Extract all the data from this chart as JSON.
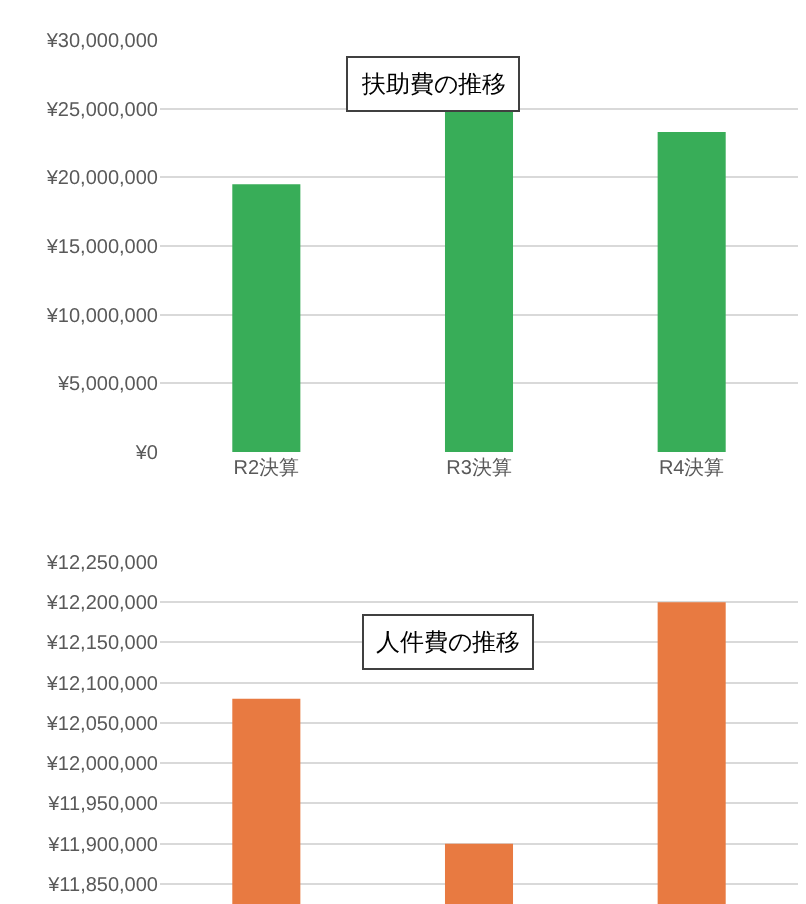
{
  "chart_data": [
    {
      "type": "bar",
      "title": "扶助費の推移",
      "categories": [
        "R2決算",
        "R3決算",
        "R4決算"
      ],
      "series": [
        {
          "color": "#38ad58",
          "values": [
            19500000,
            25100000,
            23300000
          ]
        }
      ],
      "ylim": [
        0,
        30000000
      ],
      "yticks": [
        {
          "value": 0,
          "label": "¥0"
        },
        {
          "value": 5000000,
          "label": "¥5,000,000"
        },
        {
          "value": 10000000,
          "label": "¥10,000,000"
        },
        {
          "value": 15000000,
          "label": "¥15,000,000"
        },
        {
          "value": 20000000,
          "label": "¥20,000,000"
        },
        {
          "value": 25000000,
          "label": "¥25,000,000"
        },
        {
          "value": 30000000,
          "label": "¥30,000,000"
        }
      ],
      "grid": "y"
    },
    {
      "type": "bar",
      "title": "人件費の推移",
      "categories": [
        null,
        null,
        null
      ],
      "series": [
        {
          "color": "#e87a41",
          "values": [
            12080000,
            11900000,
            12200000
          ]
        }
      ],
      "ylim": [
        11825000,
        12250000
      ],
      "yticks": [
        {
          "value": 11850000,
          "label": "¥11,850,000"
        },
        {
          "value": 11900000,
          "label": "¥11,900,000"
        },
        {
          "value": 11950000,
          "label": "¥11,950,000"
        },
        {
          "value": 12000000,
          "label": "¥12,000,000"
        },
        {
          "value": 12050000,
          "label": "¥12,050,000"
        },
        {
          "value": 12100000,
          "label": "¥12,100,000"
        },
        {
          "value": 12150000,
          "label": "¥12,150,000"
        },
        {
          "value": 12200000,
          "label": "¥12,200,000"
        },
        {
          "value": 12250000,
          "label": "¥12,250,000"
        }
      ],
      "grid": "y",
      "tick_labels": "y"
    }
  ]
}
